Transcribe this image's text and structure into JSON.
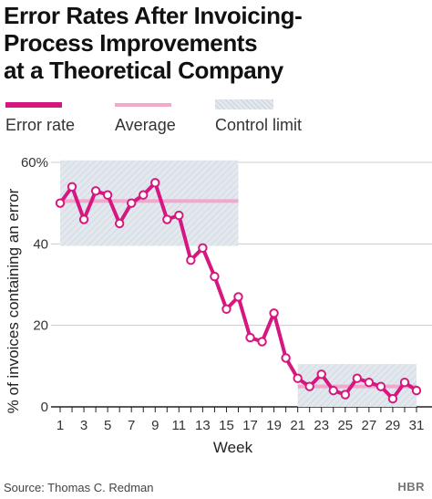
{
  "title_lines": [
    "Error Rates After Invoicing-",
    "Process Improvements",
    "at a Theoretical Company"
  ],
  "legend": {
    "error_rate": "Error rate",
    "average": "Average",
    "control_limit": "Control limit"
  },
  "colors": {
    "error_rate": "#d6177f",
    "average": "#f2a7cc",
    "control_band": "#dfe5ec",
    "axis": "#222222",
    "grid": "#cccccc"
  },
  "source": "Source: Thomas C. Redman",
  "brand": "HBR",
  "chart_data": {
    "type": "line",
    "xlabel": "Week",
    "ylabel": "% of invoices containing an error",
    "xlim": [
      1,
      31
    ],
    "ylim": [
      0,
      60
    ],
    "x_tick_labels": [
      "1",
      "3",
      "5",
      "7",
      "9",
      "11",
      "13",
      "15",
      "17",
      "19",
      "21",
      "23",
      "25",
      "27",
      "29",
      "31"
    ],
    "y_tick_labels": [
      "0",
      "20",
      "40",
      "60%"
    ],
    "y_ticks": [
      0,
      20,
      40,
      60
    ],
    "grid": "horizontal",
    "legend_position": "top",
    "series": [
      {
        "name": "Error rate",
        "x": [
          1,
          2,
          3,
          4,
          5,
          6,
          7,
          8,
          9,
          10,
          11,
          12,
          13,
          14,
          15,
          16,
          17,
          18,
          19,
          20,
          21,
          22,
          23,
          24,
          25,
          26,
          27,
          28,
          29,
          30,
          31
        ],
        "values": [
          50,
          54,
          46,
          53,
          52,
          45,
          50,
          52,
          55,
          46,
          47,
          36,
          39,
          32,
          24,
          27,
          17,
          16,
          23,
          12,
          7,
          5,
          8,
          4,
          3,
          7,
          6,
          5,
          2,
          6,
          4
        ]
      }
    ],
    "average_segments": [
      {
        "x_range": [
          1,
          16
        ],
        "value": 50.5
      },
      {
        "x_range": [
          21,
          31
        ],
        "value": 5.0
      }
    ],
    "control_limits": [
      {
        "x_range": [
          1,
          16
        ],
        "range": [
          39.5,
          60.5
        ]
      },
      {
        "x_range": [
          21,
          31
        ],
        "range": [
          0,
          10.5
        ]
      }
    ]
  }
}
